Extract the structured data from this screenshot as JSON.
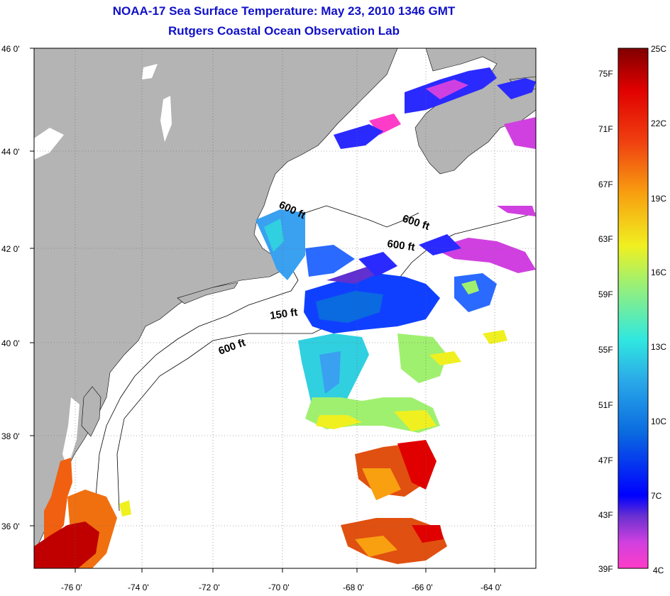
{
  "title_line1": "NOAA-17 Sea Surface Temperature:  May 23, 2010 1346 GMT",
  "title_line2": "Rutgers Coastal Ocean Observation Lab",
  "lat_labels": [
    "46 0'",
    "44 0'",
    "42 0'",
    "40 0'",
    "38 0'",
    "36 0'"
  ],
  "lon_labels": [
    "-76 0'",
    "-74 0'",
    "-72 0'",
    "-70 0'",
    "-68 0'",
    "-66 0'",
    "-64 0'"
  ],
  "contour_labels": [
    "600 ft",
    "600 ft",
    "600 ft",
    "150 ft",
    "600 ft"
  ],
  "colorbar": {
    "fahrenheit": [
      "75F",
      "71F",
      "67F",
      "63F",
      "59F",
      "55F",
      "51F",
      "47F",
      "43F",
      "39F"
    ],
    "celsius": [
      "25C",
      "22C",
      "19C",
      "16C",
      "13C",
      "10C",
      "7C",
      "4C"
    ]
  },
  "colors": {
    "land": "#b4b4b4",
    "title": "#1010c8"
  }
}
